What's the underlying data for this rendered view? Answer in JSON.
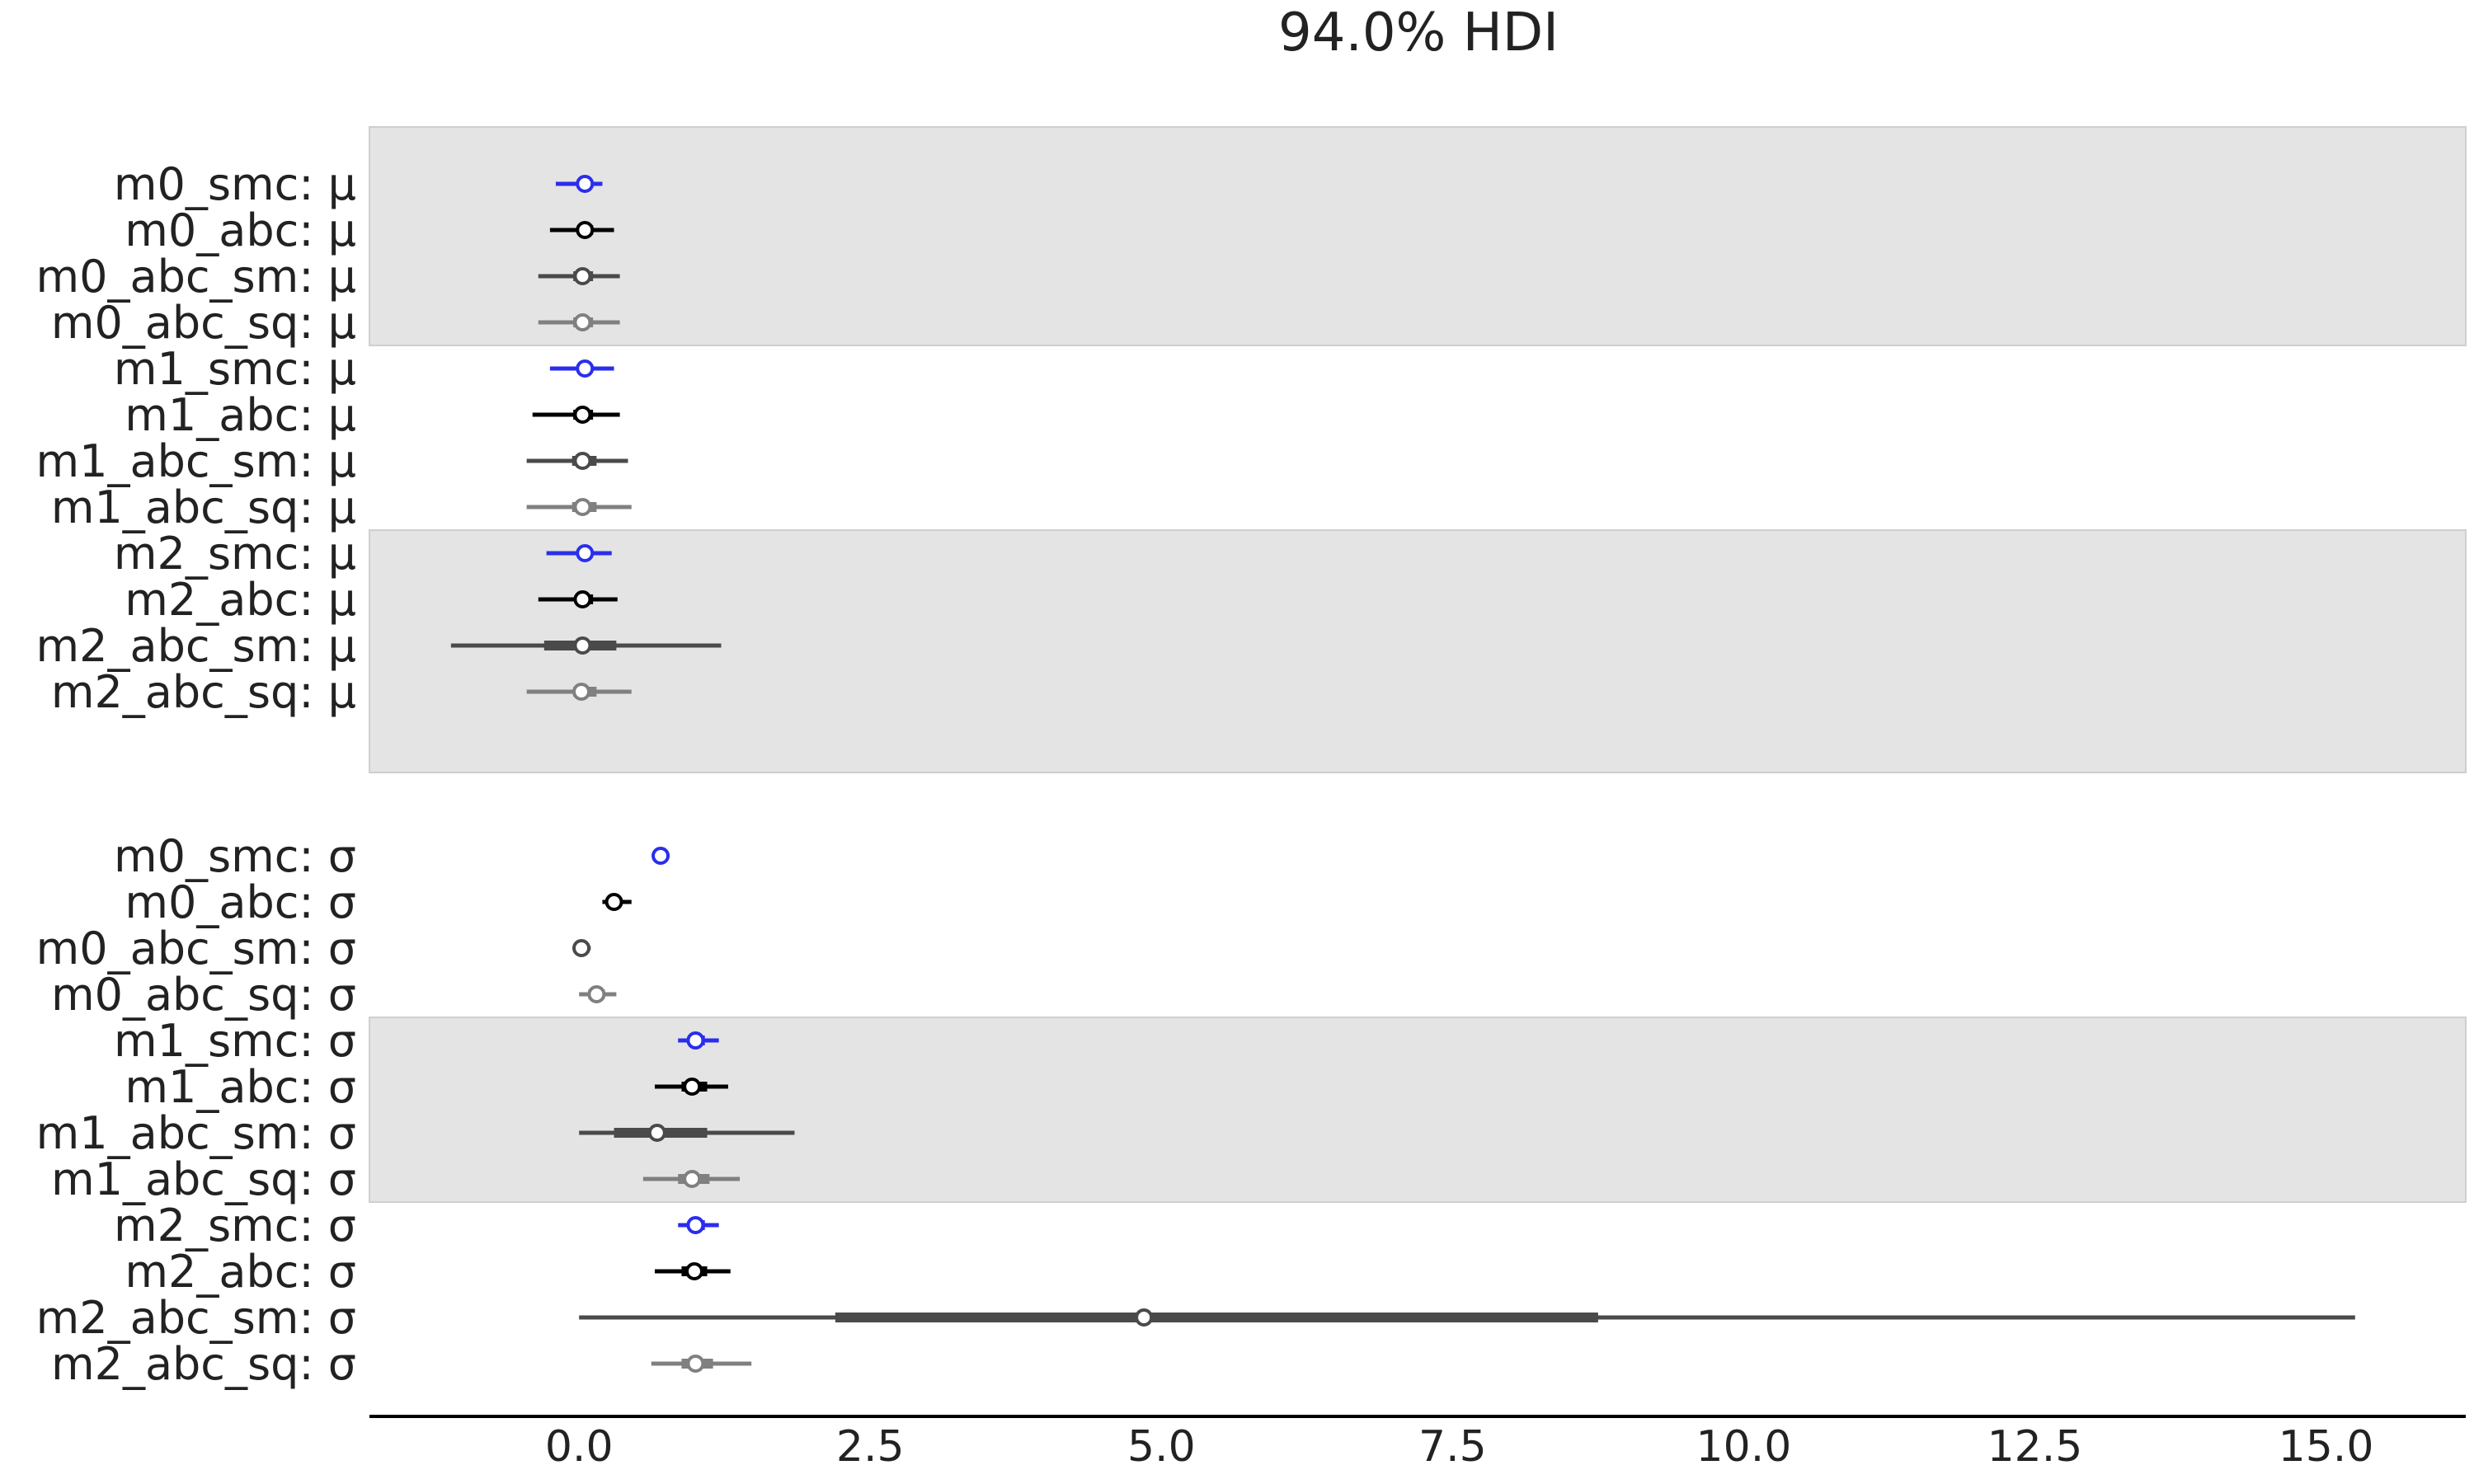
{
  "chart_data": {
    "type": "forest",
    "title": "94.0% HDI",
    "xlim": [
      -1.8,
      16.2
    ],
    "xticks": [
      "0.0",
      "2.5",
      "5.0",
      "7.5",
      "10.0",
      "12.5",
      "15.0"
    ],
    "xtick_values": [
      0,
      2.5,
      5,
      7.5,
      10,
      12.5,
      15
    ],
    "grid": false,
    "colors": {
      "smc": "#2a2eec",
      "abc": "#000000",
      "abc_sm": "#4a4a4a",
      "abc_sq": "#808080",
      "band": "#e4e4e4"
    },
    "panels": [
      {
        "parameter": "μ",
        "shaded_bands": [
          0,
          2
        ],
        "rows": [
          {
            "label": "m0_smc: μ",
            "kind": "smc",
            "hdi": [
              -0.2,
              0.2
            ],
            "iqr": [
              0.0,
              0.1
            ],
            "median": 0.05
          },
          {
            "label": "m0_abc: μ",
            "kind": "abc",
            "hdi": [
              -0.25,
              0.3
            ],
            "iqr": [
              0.0,
              0.12
            ],
            "median": 0.05
          },
          {
            "label": "m0_abc_sm: μ",
            "kind": "abc_sm",
            "hdi": [
              -0.35,
              0.35
            ],
            "iqr": [
              -0.05,
              0.12
            ],
            "median": 0.03
          },
          {
            "label": "m0_abc_sq: μ",
            "kind": "abc_sq",
            "hdi": [
              -0.35,
              0.35
            ],
            "iqr": [
              -0.05,
              0.12
            ],
            "median": 0.03
          },
          {
            "label": "m1_smc: μ",
            "kind": "smc",
            "hdi": [
              -0.25,
              0.3
            ],
            "iqr": [
              0.0,
              0.1
            ],
            "median": 0.05
          },
          {
            "label": "m1_abc: μ",
            "kind": "abc",
            "hdi": [
              -0.4,
              0.35
            ],
            "iqr": [
              -0.05,
              0.12
            ],
            "median": 0.03
          },
          {
            "label": "m1_abc_sm: μ",
            "kind": "abc_sm",
            "hdi": [
              -0.45,
              0.42
            ],
            "iqr": [
              -0.06,
              0.15
            ],
            "median": 0.03
          },
          {
            "label": "m1_abc_sq: μ",
            "kind": "abc_sq",
            "hdi": [
              -0.45,
              0.45
            ],
            "iqr": [
              -0.06,
              0.15
            ],
            "median": 0.03
          },
          {
            "label": "m2_smc: μ",
            "kind": "smc",
            "hdi": [
              -0.28,
              0.28
            ],
            "iqr": [
              0.0,
              0.1
            ],
            "median": 0.05
          },
          {
            "label": "m2_abc: μ",
            "kind": "abc",
            "hdi": [
              -0.35,
              0.33
            ],
            "iqr": [
              -0.02,
              0.12
            ],
            "median": 0.03
          },
          {
            "label": "m2_abc_sm: μ",
            "kind": "abc_sm",
            "hdi": [
              -1.1,
              1.22
            ],
            "iqr": [
              -0.3,
              0.32
            ],
            "median": 0.03
          },
          {
            "label": "m2_abc_sq: μ",
            "kind": "abc_sq",
            "hdi": [
              -0.45,
              0.45
            ],
            "iqr": [
              -0.05,
              0.15
            ],
            "median": 0.02
          }
        ]
      },
      {
        "parameter": "σ",
        "shaded_bands": [
          1
        ],
        "rows": [
          {
            "label": "m0_smc: σ",
            "kind": "smc",
            "hdi": [
              0.68,
              0.72
            ],
            "iqr": [
              0.69,
              0.71
            ],
            "median": 0.7
          },
          {
            "label": "m0_abc: σ",
            "kind": "abc",
            "hdi": [
              0.2,
              0.45
            ],
            "iqr": [
              0.27,
              0.36
            ],
            "median": 0.3
          },
          {
            "label": "m0_abc_sm: σ",
            "kind": "abc_sm",
            "hdi": [
              0.0,
              0.1
            ],
            "iqr": [
              0.01,
              0.06
            ],
            "median": 0.02
          },
          {
            "label": "m0_abc_sq: σ",
            "kind": "abc_sq",
            "hdi": [
              0.0,
              0.32
            ],
            "iqr": [
              0.08,
              0.22
            ],
            "median": 0.15
          },
          {
            "label": "m1_smc: σ",
            "kind": "smc",
            "hdi": [
              0.85,
              1.2
            ],
            "iqr": [
              0.95,
              1.08
            ],
            "median": 1.0
          },
          {
            "label": "m1_abc: σ",
            "kind": "abc",
            "hdi": [
              0.65,
              1.28
            ],
            "iqr": [
              0.88,
              1.1
            ],
            "median": 0.97
          },
          {
            "label": "m1_abc_sm: σ",
            "kind": "abc_sm",
            "hdi": [
              0.0,
              1.85
            ],
            "iqr": [
              0.3,
              1.1
            ],
            "median": 0.67
          },
          {
            "label": "m1_abc_sq: σ",
            "kind": "abc_sq",
            "hdi": [
              0.55,
              1.38
            ],
            "iqr": [
              0.85,
              1.12
            ],
            "median": 0.97
          },
          {
            "label": "m2_smc: σ",
            "kind": "smc",
            "hdi": [
              0.85,
              1.2
            ],
            "iqr": [
              0.95,
              1.08
            ],
            "median": 1.0
          },
          {
            "label": "m2_abc: σ",
            "kind": "abc",
            "hdi": [
              0.65,
              1.3
            ],
            "iqr": [
              0.88,
              1.1
            ],
            "median": 0.99
          },
          {
            "label": "m2_abc_sm: σ",
            "kind": "abc_sm",
            "hdi": [
              0.0,
              15.25
            ],
            "iqr": [
              2.2,
              8.75
            ],
            "median": 4.85
          },
          {
            "label": "m2_abc_sq: σ",
            "kind": "abc_sq",
            "hdi": [
              0.62,
              1.48
            ],
            "iqr": [
              0.88,
              1.15
            ],
            "median": 1.0
          }
        ]
      }
    ]
  }
}
